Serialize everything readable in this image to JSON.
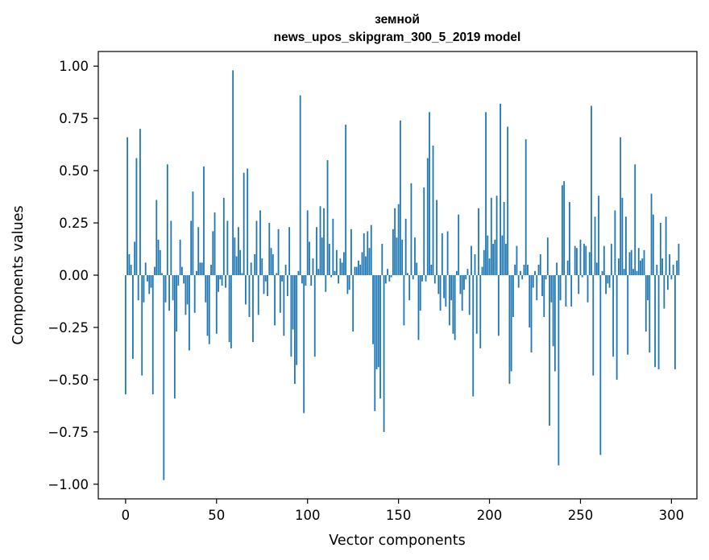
{
  "chart_data": {
    "type": "bar",
    "title_line1": "земной",
    "title_line2": "news_upos_skipgram_300_5_2019 model",
    "xlabel": "Vector components",
    "ylabel": "Components values",
    "xlim": [
      -15,
      314
    ],
    "ylim": [
      -1.07,
      1.07
    ],
    "xticks": [
      0,
      50,
      100,
      150,
      200,
      250,
      300
    ],
    "xtick_labels": [
      "0",
      "50",
      "100",
      "150",
      "200",
      "250",
      "300"
    ],
    "yticks": [
      -1.0,
      -0.75,
      -0.5,
      -0.25,
      0.0,
      0.25,
      0.5,
      0.75,
      1.0
    ],
    "ytick_labels": [
      "−1.00",
      "−0.75",
      "−0.50",
      "−0.25",
      "0.00",
      "0.25",
      "0.50",
      "0.75",
      "1.00"
    ],
    "bar_color": "#1f77b4",
    "values": [
      -0.57,
      0.66,
      0.1,
      0.05,
      -0.4,
      0.16,
      0.56,
      -0.12,
      0.7,
      -0.48,
      -0.13,
      0.06,
      -0.03,
      -0.09,
      -0.06,
      -0.57,
      0.04,
      0.36,
      0.17,
      0.12,
      0.01,
      -0.98,
      -0.13,
      0.53,
      -0.17,
      0.26,
      -0.12,
      -0.59,
      -0.27,
      -0.05,
      0.17,
      0.04,
      -0.04,
      -0.19,
      -0.14,
      -0.36,
      0.26,
      0.4,
      -0.18,
      0.02,
      0.23,
      0.06,
      0.06,
      0.52,
      -0.13,
      -0.29,
      -0.33,
      0.05,
      0.21,
      0.3,
      -0.28,
      -0.08,
      -0.02,
      -0.05,
      0.37,
      -0.06,
      0.26,
      -0.32,
      -0.35,
      0.98,
      0.18,
      0.09,
      0.23,
      0.12,
      0.01,
      0.49,
      -0.14,
      0.51,
      -0.2,
      0.06,
      -0.32,
      0.1,
      0.26,
      -0.19,
      0.31,
      0.08,
      -0.09,
      -0.03,
      -0.1,
      0.25,
      0.13,
      0.1,
      -0.24,
      0.01,
      0.22,
      -0.18,
      -0.03,
      -0.29,
      0.05,
      -0.1,
      0.23,
      -0.39,
      -0.26,
      -0.52,
      -0.43,
      0.02,
      0.86,
      -0.04,
      -0.66,
      -0.05,
      0.31,
      0.16,
      -0.05,
      0.08,
      -0.39,
      0.23,
      0.03,
      0.33,
      0.18,
      0.32,
      -0.08,
      0.55,
      0.15,
      -0.01,
      0.27,
      0.02,
      0.12,
      -0.04,
      0.08,
      0.06,
      0.11,
      0.72,
      -0.09,
      -0.07,
      0.22,
      -0.27,
      0.04,
      0.04,
      0.07,
      0.05,
      0.11,
      0.2,
      0.09,
      0.21,
      0.13,
      0.24,
      -0.33,
      -0.65,
      -0.45,
      -0.44,
      -0.59,
      0.15,
      -0.75,
      -0.04,
      0.03,
      -0.03,
      -0.01,
      0.22,
      0.32,
      0.18,
      0.34,
      0.74,
      0.17,
      -0.24,
      0.27,
      0.01,
      -0.12,
      0.44,
      -0.02,
      0.18,
      0.06,
      -0.31,
      -0.17,
      -0.03,
      0.42,
      -0.03,
      0.56,
      0.78,
      0.05,
      0.62,
      -0.04,
      0.36,
      -0.09,
      -0.17,
      0.2,
      -0.11,
      -0.15,
      0.21,
      -0.24,
      -0.12,
      -0.28,
      -0.31,
      0.02,
      0.29,
      -0.09,
      -0.17,
      -0.07,
      -0.02,
      0.03,
      -0.19,
      0.14,
      -0.58,
      0.1,
      -0.28,
      0.32,
      -0.35,
      0.04,
      0.12,
      0.78,
      0.19,
      0.08,
      0.37,
      0.15,
      0.17,
      0.38,
      -0.29,
      0.82,
      0.19,
      0.35,
      0.15,
      0.71,
      -0.52,
      -0.46,
      -0.2,
      0.05,
      0.14,
      -0.06,
      0.02,
      -0.02,
      0.05,
      0.65,
      0.05,
      -0.25,
      -0.37,
      -0.06,
      0.02,
      -0.12,
      0.05,
      0.1,
      -0.1,
      -0.2,
      -0.02,
      0.18,
      -0.72,
      -0.13,
      -0.34,
      -0.46,
      0.06,
      -0.91,
      -0.12,
      0.43,
      0.45,
      -0.15,
      0.07,
      0.35,
      -0.15,
      0.0,
      0.14,
      0.13,
      -0.09,
      0.17,
      -0.01,
      0.15,
      0.14,
      -0.13,
      0.11,
      0.81,
      -0.48,
      0.28,
      0.06,
      0.38,
      -0.86,
      0.02,
      0.14,
      -0.09,
      -0.04,
      -0.06,
      0.15,
      -0.39,
      0.31,
      -0.5,
      0.08,
      0.66,
      0.37,
      0.03,
      0.28,
      -0.38,
      0.11,
      0.12,
      0.03,
      0.53,
      0.02,
      0.13,
      0.07,
      0.08,
      0.12,
      -0.27,
      -0.12,
      -0.37,
      0.39,
      0.29,
      -0.44,
      0.05,
      -0.45,
      0.25,
      0.08,
      -0.16,
      0.28,
      -0.07,
      0.1,
      -0.02,
      0.05,
      -0.45,
      0.07,
      0.15
    ]
  }
}
